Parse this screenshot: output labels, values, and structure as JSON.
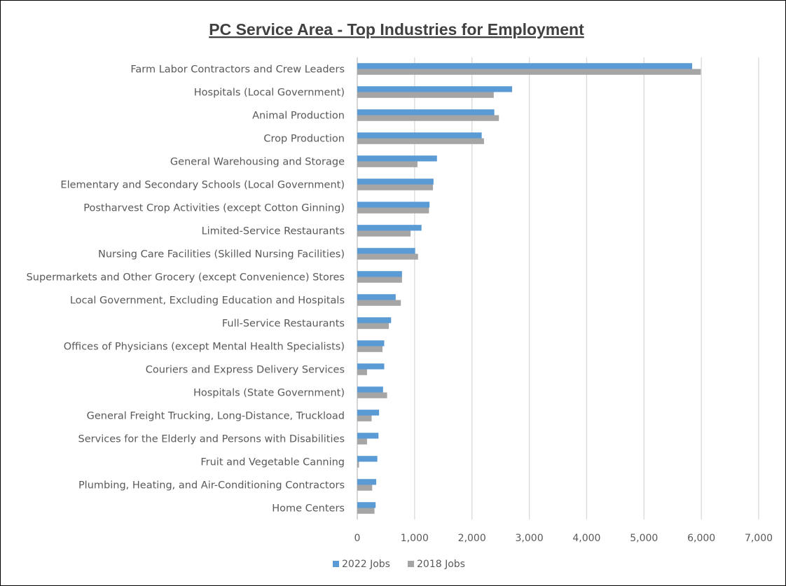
{
  "chart_data": {
    "type": "bar",
    "orientation": "horizontal",
    "title": "PC Service Area - Top Industries for Employment",
    "categories": [
      "Farm Labor Contractors and Crew Leaders",
      "Hospitals (Local Government)",
      "Animal Production",
      "Crop Production",
      "General Warehousing and Storage",
      "Elementary and Secondary Schools (Local Government)",
      "Postharvest Crop Activities (except Cotton Ginning)",
      "Limited-Service Restaurants",
      "Nursing Care Facilities (Skilled Nursing Facilities)",
      "Supermarkets and Other Grocery (except Convenience) Stores",
      "Local Government, Excluding Education and Hospitals",
      "Full-Service Restaurants",
      "Offices of Physicians (except Mental Health Specialists)",
      "Couriers and Express Delivery Services",
      "Hospitals (State Government)",
      "General Freight Trucking, Long-Distance, Truckload",
      "Services for the Elderly and Persons with Disabilities",
      "Fruit and Vegetable Canning",
      "Plumbing, Heating, and Air-Conditioning Contractors",
      "Home Centers"
    ],
    "series": [
      {
        "name": "2022 Jobs",
        "color": "#5b9bd5",
        "values": [
          5840,
          2700,
          2390,
          2170,
          1390,
          1330,
          1260,
          1120,
          1010,
          780,
          670,
          590,
          470,
          470,
          450,
          380,
          370,
          350,
          330,
          320
        ]
      },
      {
        "name": "2018 Jobs",
        "color": "#a5a5a5",
        "values": [
          5990,
          2380,
          2470,
          2210,
          1050,
          1320,
          1250,
          930,
          1060,
          780,
          760,
          550,
          440,
          170,
          520,
          250,
          170,
          30,
          260,
          300
        ]
      }
    ],
    "xlim": [
      0,
      7000
    ],
    "xticks": [
      0,
      1000,
      2000,
      3000,
      4000,
      5000,
      6000,
      7000
    ],
    "xtick_labels": [
      "0",
      "1,000",
      "2,000",
      "3,000",
      "4,000",
      "5,000",
      "6,000",
      "7,000"
    ],
    "grid": true,
    "legend_position": "bottom"
  }
}
